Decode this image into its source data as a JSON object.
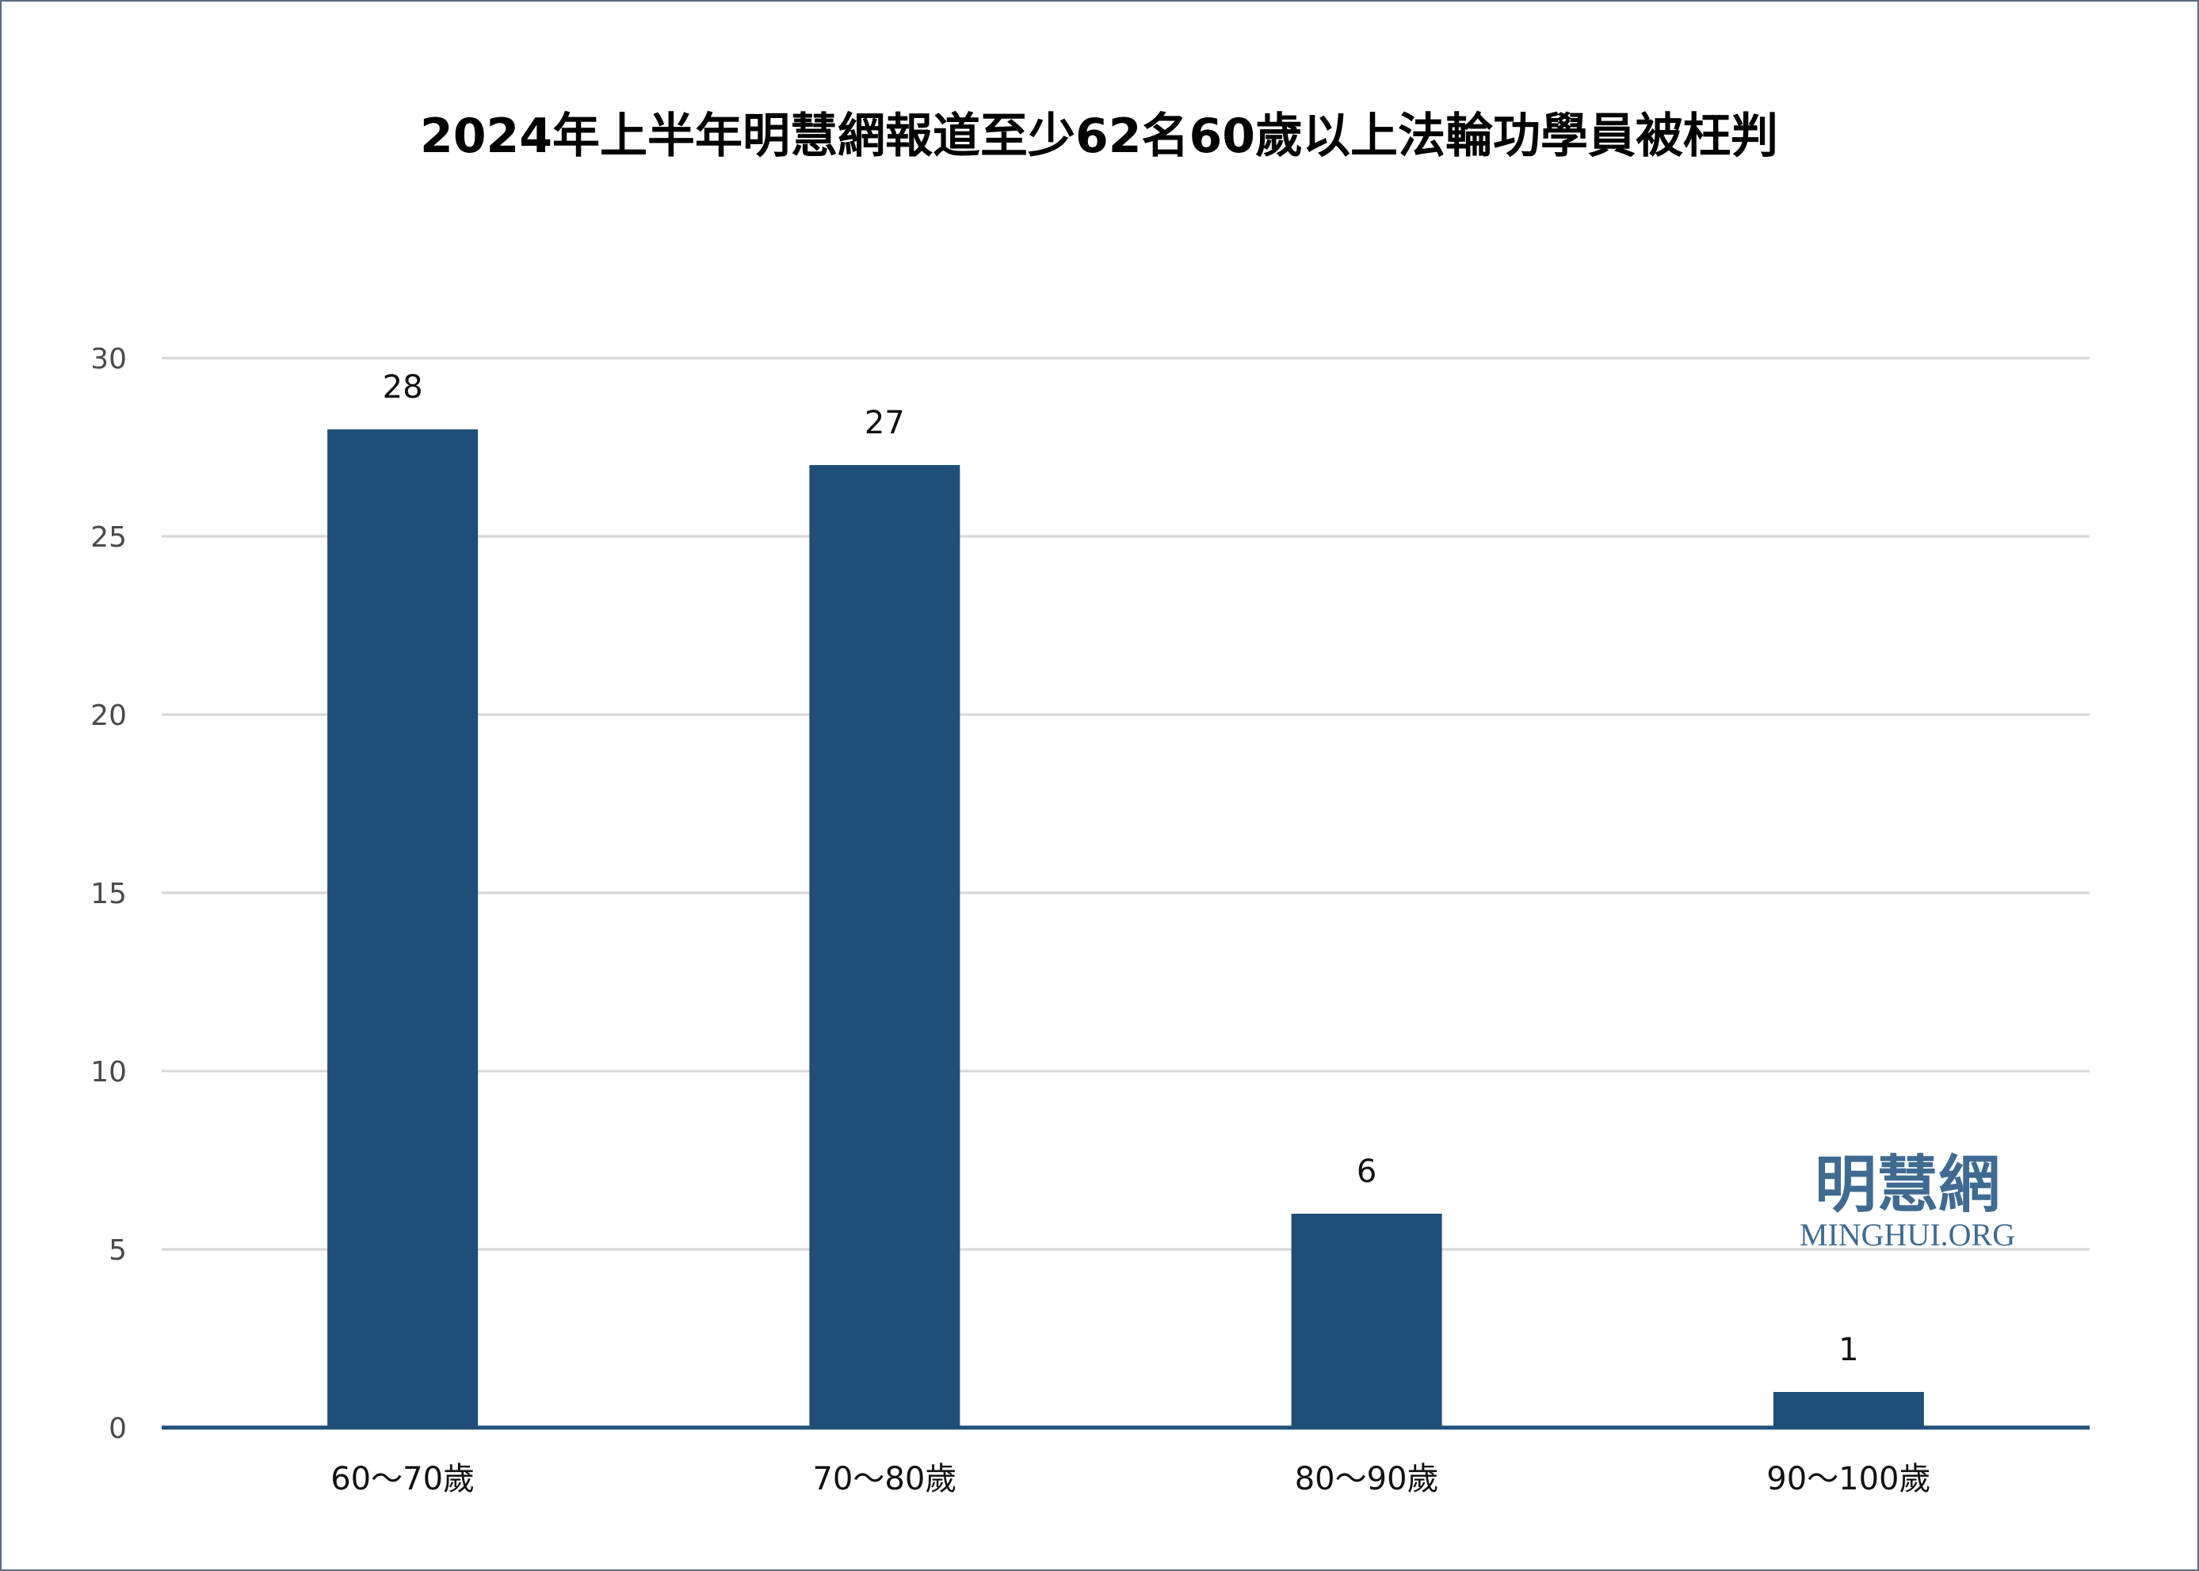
{
  "chart_data": {
    "type": "bar",
    "title": "2024年上半年明慧網報道至少62名60歲以上法輪功學員被枉判",
    "xlabel": "",
    "ylabel": "",
    "categories": [
      "60～70歲",
      "70～80歲",
      "80～90歲",
      "90～100歲"
    ],
    "values": [
      28,
      27,
      6,
      1
    ],
    "ylim": [
      0,
      30
    ],
    "yticks": [
      0,
      5,
      10,
      15,
      20,
      25,
      30
    ],
    "grid": true,
    "legend": "none",
    "data_labels": true,
    "bar_color": "#1f4e79"
  },
  "watermark": {
    "chinese": "明慧網",
    "english": "MINGHUI.ORG",
    "color": "#3f6a92"
  }
}
